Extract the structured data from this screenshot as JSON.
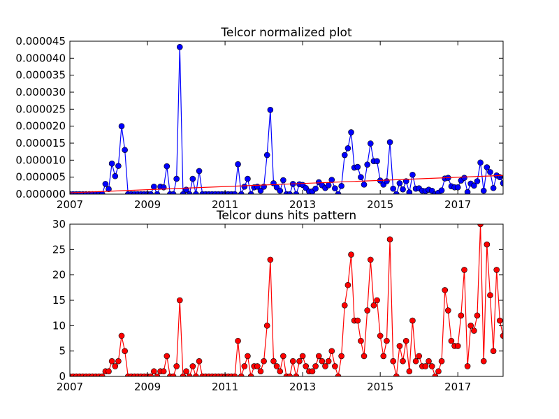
{
  "chart_data": [
    {
      "type": "line",
      "title": "Telcor normalized plot",
      "x": [
        2007,
        2007.083,
        2007.167,
        2007.25,
        2007.333,
        2007.417,
        2007.5,
        2007.583,
        2007.667,
        2007.75,
        2007.833,
        2007.917,
        2008,
        2008.083,
        2008.167,
        2008.25,
        2008.333,
        2008.417,
        2008.5,
        2008.583,
        2008.667,
        2008.75,
        2008.833,
        2008.917,
        2009,
        2009.083,
        2009.167,
        2009.25,
        2009.333,
        2009.417,
        2009.5,
        2009.583,
        2009.667,
        2009.75,
        2009.833,
        2009.917,
        2010,
        2010.083,
        2010.167,
        2010.25,
        2010.333,
        2010.417,
        2010.5,
        2010.583,
        2010.667,
        2010.75,
        2010.833,
        2010.917,
        2011,
        2011.083,
        2011.167,
        2011.25,
        2011.333,
        2011.417,
        2011.5,
        2011.583,
        2011.667,
        2011.75,
        2011.833,
        2011.917,
        2012,
        2012.083,
        2012.167,
        2012.25,
        2012.333,
        2012.417,
        2012.5,
        2012.583,
        2012.667,
        2012.75,
        2012.833,
        2012.917,
        2013,
        2013.083,
        2013.167,
        2013.25,
        2013.333,
        2013.417,
        2013.5,
        2013.583,
        2013.667,
        2013.75,
        2013.833,
        2013.917,
        2014,
        2014.083,
        2014.167,
        2014.25,
        2014.333,
        2014.417,
        2014.5,
        2014.583,
        2014.667,
        2014.75,
        2014.833,
        2014.917,
        2015,
        2015.083,
        2015.167,
        2015.25,
        2015.333,
        2015.417,
        2015.5,
        2015.583,
        2015.667,
        2015.75,
        2015.833,
        2015.917,
        2016,
        2016.083,
        2016.167,
        2016.25,
        2016.333,
        2016.417,
        2016.5,
        2016.583,
        2016.667,
        2016.75,
        2016.833,
        2016.917,
        2017,
        2017.083,
        2017.167,
        2017.25,
        2017.333,
        2017.417,
        2017.5,
        2017.583,
        2017.667,
        2017.75,
        2017.833,
        2017.917,
        2018,
        2018.083,
        2018.167
      ],
      "series": [
        {
          "color": "#0000ff",
          "markers": true,
          "values": [
            0,
            0,
            0,
            0,
            0,
            0,
            0,
            0,
            0,
            0,
            0,
            3e-06,
            1.5e-06,
            9e-06,
            5.3e-06,
            8.3e-06,
            2e-05,
            1.3e-05,
            0,
            0,
            0,
            0,
            0,
            0,
            0,
            0,
            2.2e-06,
            0,
            2.2e-06,
            2e-06,
            8.2e-06,
            0,
            0,
            4.5e-06,
            4.33e-05,
            0,
            1.3e-06,
            0,
            4.5e-06,
            0,
            6.8e-06,
            0,
            0,
            0,
            0,
            0,
            0,
            0,
            0,
            0,
            0,
            0,
            8.8e-06,
            0,
            2.2e-06,
            4.5e-06,
            0,
            2e-06,
            2.2e-06,
            1e-06,
            2.2e-06,
            1.15e-05,
            2.48e-05,
            3.2e-06,
            2e-06,
            1e-06,
            4.1e-06,
            0,
            0,
            3e-06,
            0,
            2.9e-06,
            2.7e-06,
            1.8e-06,
            8e-07,
            8e-07,
            1.6e-06,
            3.5e-06,
            2.6e-06,
            1.8e-06,
            2.6e-06,
            4.2e-06,
            1.7e-06,
            0,
            2.4e-06,
            1.15e-05,
            1.35e-05,
            1.82e-05,
            7.8e-06,
            8e-06,
            5e-06,
            2.8e-06,
            8.7e-06,
            1.49e-05,
            9.7e-06,
            9.7e-06,
            4e-06,
            2.8e-06,
            3.8e-06,
            1.53e-05,
            1.6e-06,
            0,
            3.2e-06,
            1.4e-06,
            3.8e-06,
            5e-07,
            5.7e-06,
            1.6e-06,
            1.7e-06,
            1e-06,
            9e-07,
            1.3e-06,
            1e-06,
            0,
            4e-07,
            1.1e-06,
            4.6e-06,
            4.8e-06,
            2.3e-06,
            2e-06,
            2e-06,
            4e-06,
            4.8e-06,
            6e-07,
            3.1e-06,
            2.5e-06,
            3.8e-06,
            9.3e-06,
            1e-06,
            7.9e-06,
            6.5e-06,
            1.8e-06,
            5.5e-06,
            5e-06,
            3.2e-06
          ]
        },
        {
          "color": "#ff0000",
          "markers": false,
          "x": [
            2007,
            2018.167
          ],
          "values": [
            4e-07,
            5.5e-06
          ]
        }
      ],
      "xlim": [
        2007,
        2018.167
      ],
      "xticks": [
        2007,
        2009,
        2011,
        2013,
        2015,
        2017
      ],
      "ylim": [
        0,
        4.5e-05
      ],
      "yticks": [
        {
          "value": 0,
          "label": "0.000000"
        },
        {
          "value": 5e-06,
          "label": "0.000005"
        },
        {
          "value": 1e-05,
          "label": "0.000010"
        },
        {
          "value": 1.5e-05,
          "label": "0.000015"
        },
        {
          "value": 2e-05,
          "label": "0.000020"
        },
        {
          "value": 2.5e-05,
          "label": "0.000025"
        },
        {
          "value": 3e-05,
          "label": "0.000030"
        },
        {
          "value": 3.5e-05,
          "label": "0.000035"
        },
        {
          "value": 4e-05,
          "label": "0.000040"
        },
        {
          "value": 4.5e-05,
          "label": "0.000045"
        }
      ],
      "grid": false
    },
    {
      "type": "line",
      "title": "Telcor duns hits pattern",
      "x": [
        2007,
        2007.083,
        2007.167,
        2007.25,
        2007.333,
        2007.417,
        2007.5,
        2007.583,
        2007.667,
        2007.75,
        2007.833,
        2007.917,
        2008,
        2008.083,
        2008.167,
        2008.25,
        2008.333,
        2008.417,
        2008.5,
        2008.583,
        2008.667,
        2008.75,
        2008.833,
        2008.917,
        2009,
        2009.083,
        2009.167,
        2009.25,
        2009.333,
        2009.417,
        2009.5,
        2009.583,
        2009.667,
        2009.75,
        2009.833,
        2009.917,
        2010,
        2010.083,
        2010.167,
        2010.25,
        2010.333,
        2010.417,
        2010.5,
        2010.583,
        2010.667,
        2010.75,
        2010.833,
        2010.917,
        2011,
        2011.083,
        2011.167,
        2011.25,
        2011.333,
        2011.417,
        2011.5,
        2011.583,
        2011.667,
        2011.75,
        2011.833,
        2011.917,
        2012,
        2012.083,
        2012.167,
        2012.25,
        2012.333,
        2012.417,
        2012.5,
        2012.583,
        2012.667,
        2012.75,
        2012.833,
        2012.917,
        2013,
        2013.083,
        2013.167,
        2013.25,
        2013.333,
        2013.417,
        2013.5,
        2013.583,
        2013.667,
        2013.75,
        2013.833,
        2013.917,
        2014,
        2014.083,
        2014.167,
        2014.25,
        2014.333,
        2014.417,
        2014.5,
        2014.583,
        2014.667,
        2014.75,
        2014.833,
        2014.917,
        2015,
        2015.083,
        2015.167,
        2015.25,
        2015.333,
        2015.417,
        2015.5,
        2015.583,
        2015.667,
        2015.75,
        2015.833,
        2015.917,
        2016,
        2016.083,
        2016.167,
        2016.25,
        2016.333,
        2016.417,
        2016.5,
        2016.583,
        2016.667,
        2016.75,
        2016.833,
        2016.917,
        2017,
        2017.083,
        2017.167,
        2017.25,
        2017.333,
        2017.417,
        2017.5,
        2017.583,
        2017.667,
        2017.75,
        2017.833,
        2017.917,
        2018,
        2018.083,
        2018.167
      ],
      "series": [
        {
          "color": "#ff0000",
          "markers": true,
          "values": [
            0,
            0,
            0,
            0,
            0,
            0,
            0,
            0,
            0,
            0,
            0,
            1,
            1,
            3,
            2,
            3,
            8,
            5,
            0,
            0,
            0,
            0,
            0,
            0,
            0,
            0,
            1,
            0,
            1,
            1,
            4,
            0,
            0,
            2,
            15,
            0,
            1,
            0,
            2,
            0,
            3,
            0,
            0,
            0,
            0,
            0,
            0,
            0,
            0,
            0,
            0,
            0,
            7,
            0,
            2,
            4,
            0,
            2,
            2,
            1,
            3,
            10,
            23,
            3,
            2,
            1,
            4,
            0,
            0,
            3,
            0,
            3,
            4,
            2,
            1,
            1,
            2,
            4,
            3,
            2,
            3,
            5,
            2,
            0,
            4,
            14,
            18,
            24,
            11,
            11,
            7,
            4,
            13,
            23,
            14,
            15,
            8,
            4,
            7,
            27,
            3,
            0,
            6,
            3,
            7,
            1,
            11,
            3,
            4,
            2,
            2,
            3,
            2,
            0,
            1,
            3,
            17,
            13,
            7,
            6,
            6,
            12,
            21,
            2,
            10,
            9,
            12,
            30,
            3,
            26,
            16,
            5,
            21,
            11,
            8
          ]
        }
      ],
      "xlim": [
        2007,
        2018.167
      ],
      "xticks": [
        2007,
        2009,
        2011,
        2013,
        2015,
        2017
      ],
      "ylim": [
        0,
        30
      ],
      "yticks": [
        0,
        5,
        10,
        15,
        20,
        25,
        30
      ],
      "grid": false
    }
  ]
}
